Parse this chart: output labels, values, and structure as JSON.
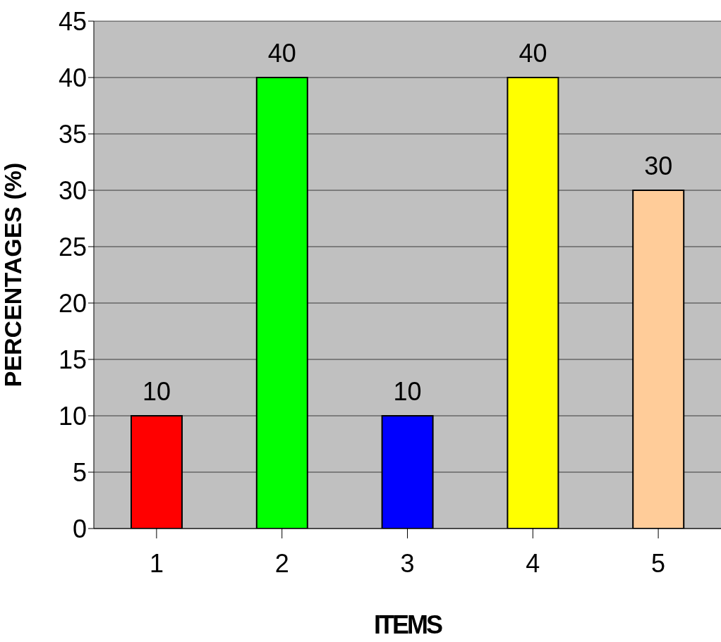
{
  "chart_data": {
    "type": "bar",
    "categories": [
      "1",
      "2",
      "3",
      "4",
      "5"
    ],
    "values": [
      10,
      40,
      10,
      40,
      30
    ],
    "colors": [
      "#ff0000",
      "#00ff00",
      "#0000ff",
      "#ffff00",
      "#ffcc99"
    ],
    "xlabel": "ITEMS",
    "ylabel": "PERCENTAGES (%)",
    "ylim": [
      0,
      45
    ],
    "yticks": [
      0,
      5,
      10,
      15,
      20,
      25,
      30,
      35,
      40,
      45
    ],
    "grid": "y",
    "data_labels": true
  }
}
